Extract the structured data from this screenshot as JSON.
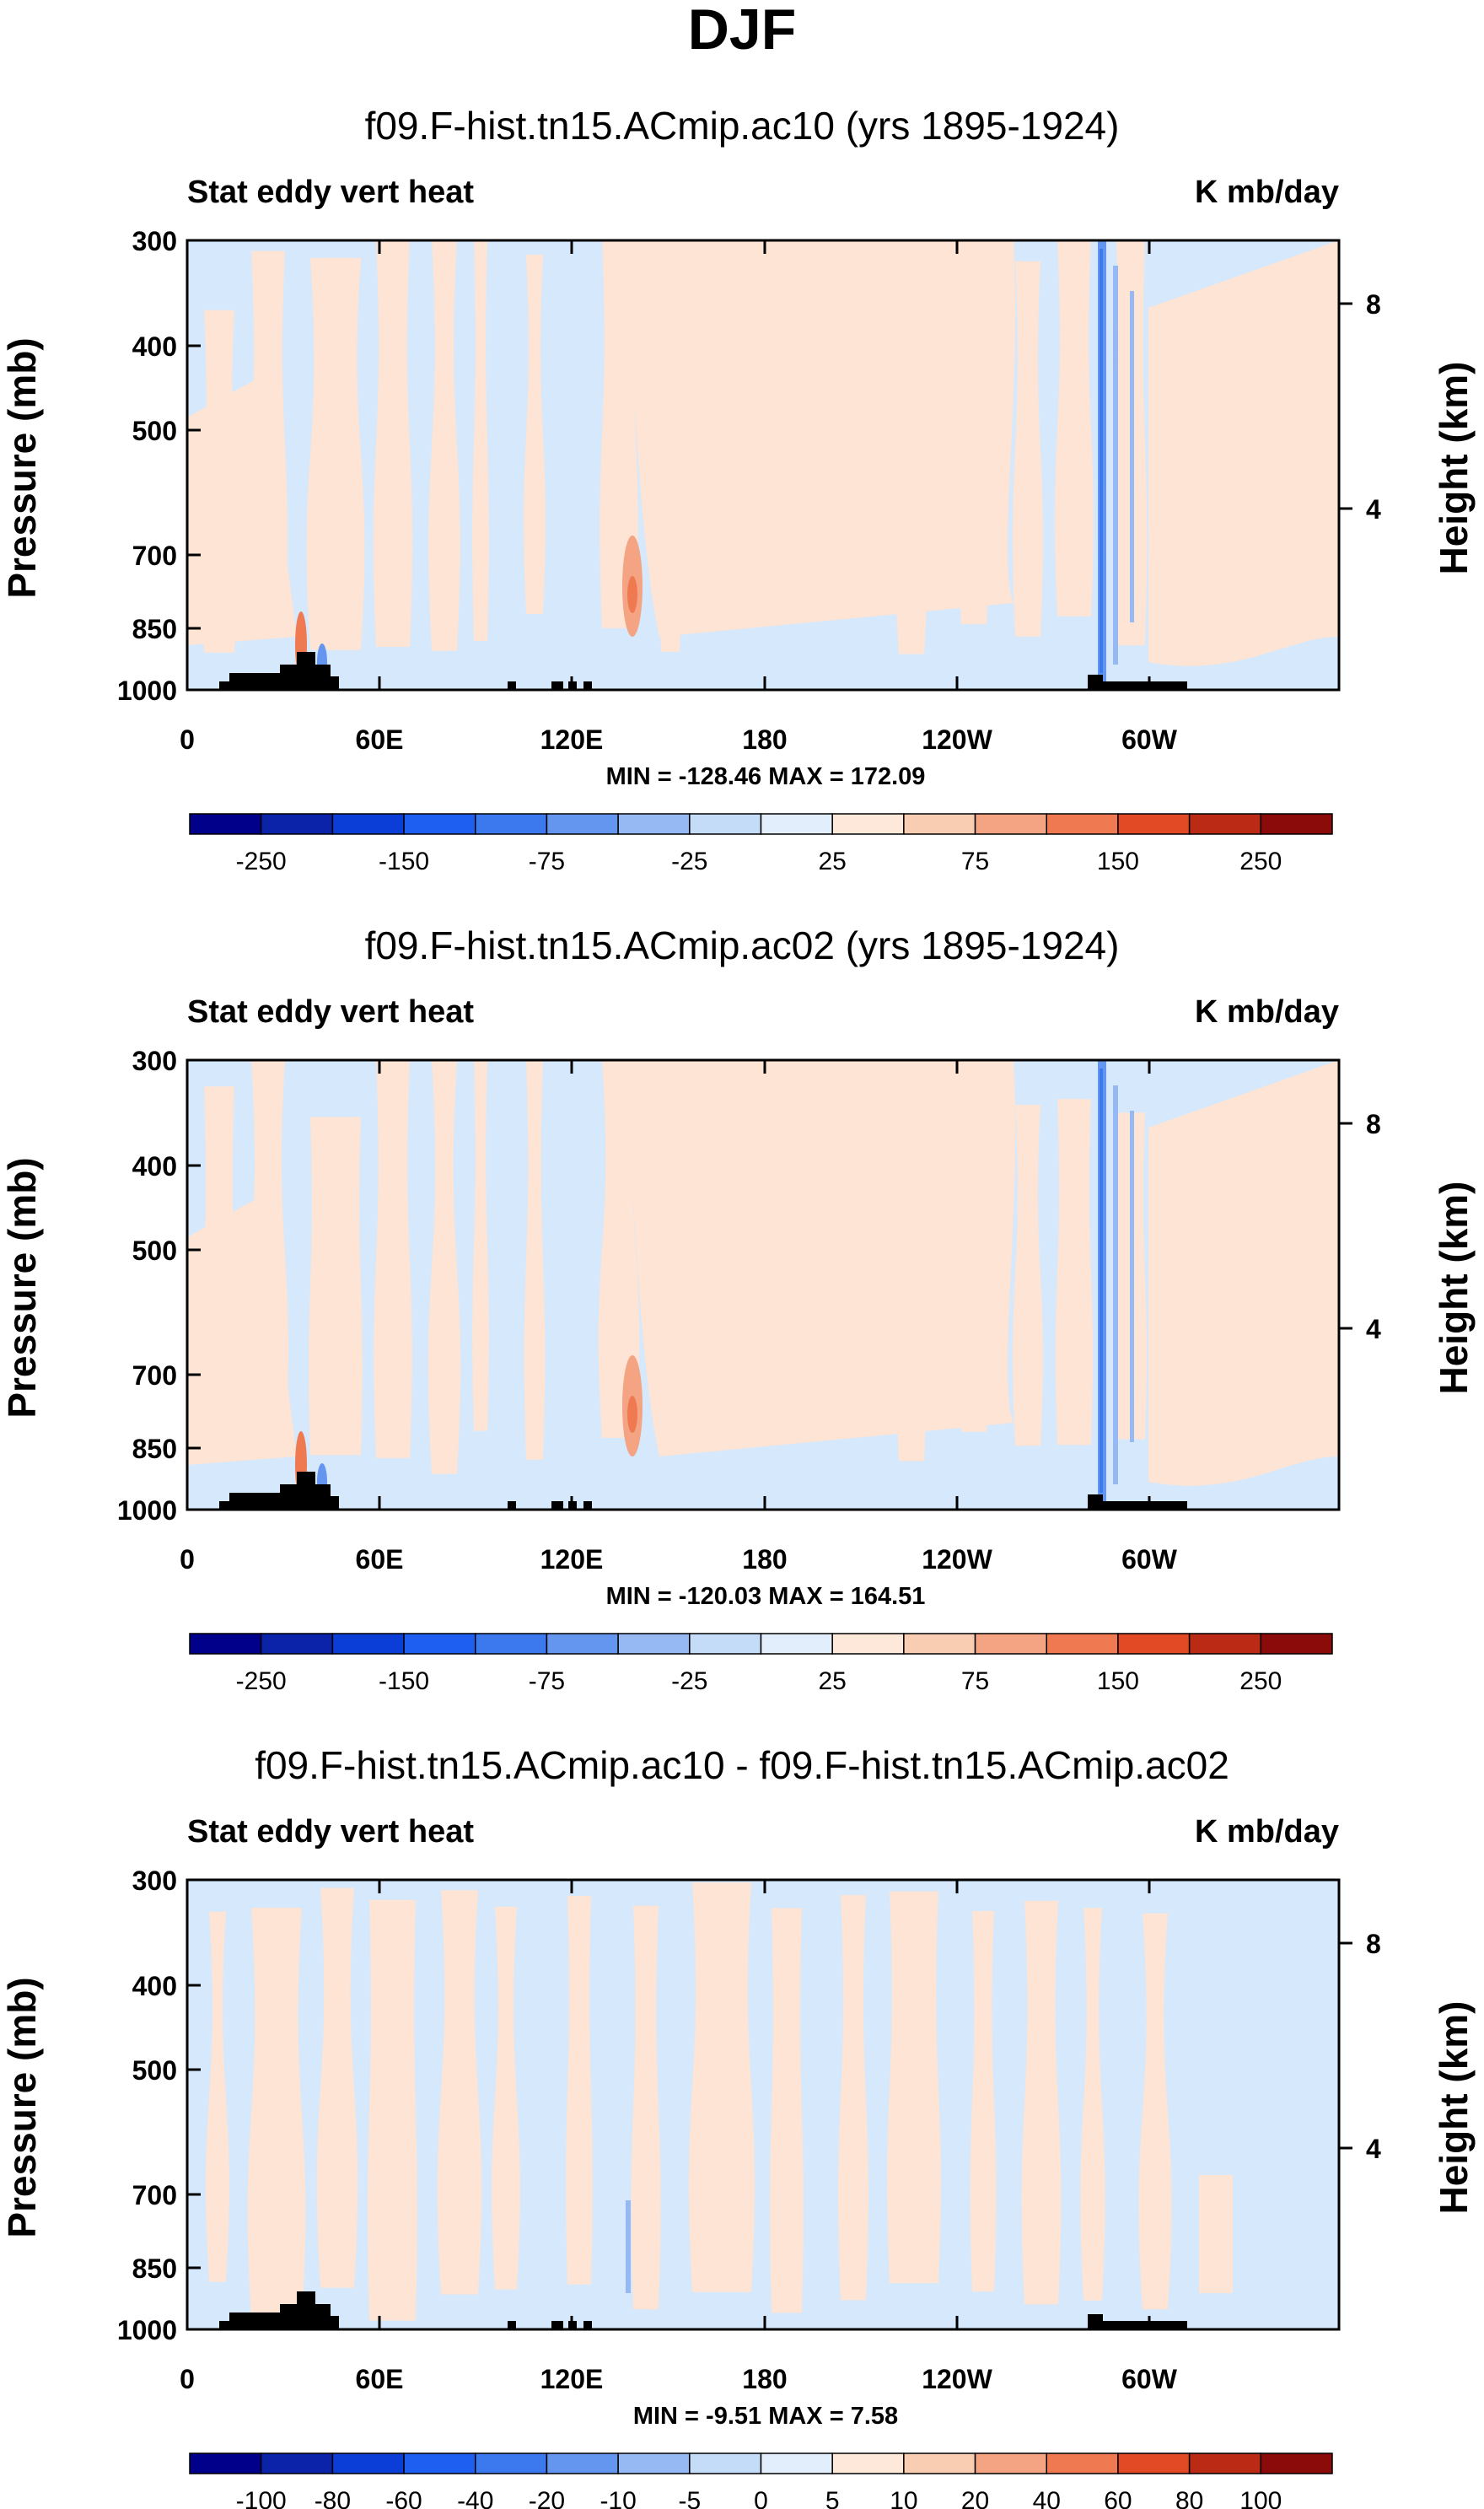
{
  "figure": {
    "title": "DJF"
  },
  "chart_data": [
    {
      "type": "heatmap",
      "title": "f09.F-hist.tn15.ACmip.ac10 (yrs 1895-1924)",
      "left_label": "Stat eddy vert heat",
      "right_label": "K mb/day",
      "ylabel": "Pressure (mb)",
      "ylabel_right": "Height (km)",
      "x_ticks": [
        "0",
        "60E",
        "120E",
        "180",
        "120W",
        "60W"
      ],
      "y_ticks": [
        "300",
        "400",
        "500",
        "700",
        "850",
        "1000"
      ],
      "y_right_ticks": [
        "8",
        "4"
      ],
      "stats": "MIN = -128.46   MAX = 172.09",
      "colorbar_labels": [
        "-250",
        "-150",
        "-75",
        "-25",
        "25",
        "75",
        "150",
        "250"
      ],
      "min": -128.46,
      "max": 172.09
    },
    {
      "type": "heatmap",
      "title": "f09.F-hist.tn15.ACmip.ac02 (yrs 1895-1924)",
      "left_label": "Stat eddy vert heat",
      "right_label": "K mb/day",
      "ylabel": "Pressure (mb)",
      "ylabel_right": "Height (km)",
      "x_ticks": [
        "0",
        "60E",
        "120E",
        "180",
        "120W",
        "60W"
      ],
      "y_ticks": [
        "300",
        "400",
        "500",
        "700",
        "850",
        "1000"
      ],
      "y_right_ticks": [
        "8",
        "4"
      ],
      "stats": "MIN = -120.03   MAX = 164.51",
      "colorbar_labels": [
        "-250",
        "-150",
        "-75",
        "-25",
        "25",
        "75",
        "150",
        "250"
      ],
      "min": -120.03,
      "max": 164.51
    },
    {
      "type": "heatmap",
      "title": "f09.F-hist.tn15.ACmip.ac10 - f09.F-hist.tn15.ACmip.ac02",
      "left_label": "Stat eddy vert heat",
      "right_label": "K mb/day",
      "ylabel": "Pressure (mb)",
      "ylabel_right": "Height (km)",
      "x_ticks": [
        "0",
        "60E",
        "120E",
        "180",
        "120W",
        "60W"
      ],
      "y_ticks": [
        "300",
        "400",
        "500",
        "700",
        "850",
        "1000"
      ],
      "y_right_ticks": [
        "8",
        "4"
      ],
      "stats": "MIN =  -9.51   MAX =   7.58",
      "colorbar_labels": [
        "-100",
        "-80",
        "-60",
        "-40",
        "-20",
        "-10",
        "-5",
        "0",
        "5",
        "10",
        "20",
        "40",
        "60",
        "80",
        "100"
      ],
      "min": -9.51,
      "max": 7.58
    }
  ],
  "colors": {
    "pos_light": "#fde4d4",
    "neg_light": "#d6e8fb",
    "topography": "#000000",
    "colorbar16": [
      "#00008b",
      "#0a23a8",
      "#0a3ed6",
      "#1e5ef0",
      "#3c78ee",
      "#6496f0",
      "#96b8f3",
      "#c4dcf8",
      "#e2eefc",
      "#fde8da",
      "#f9cdb2",
      "#f4a383",
      "#ef7a52",
      "#e24a26",
      "#ba2a14",
      "#8b0a0a"
    ]
  }
}
